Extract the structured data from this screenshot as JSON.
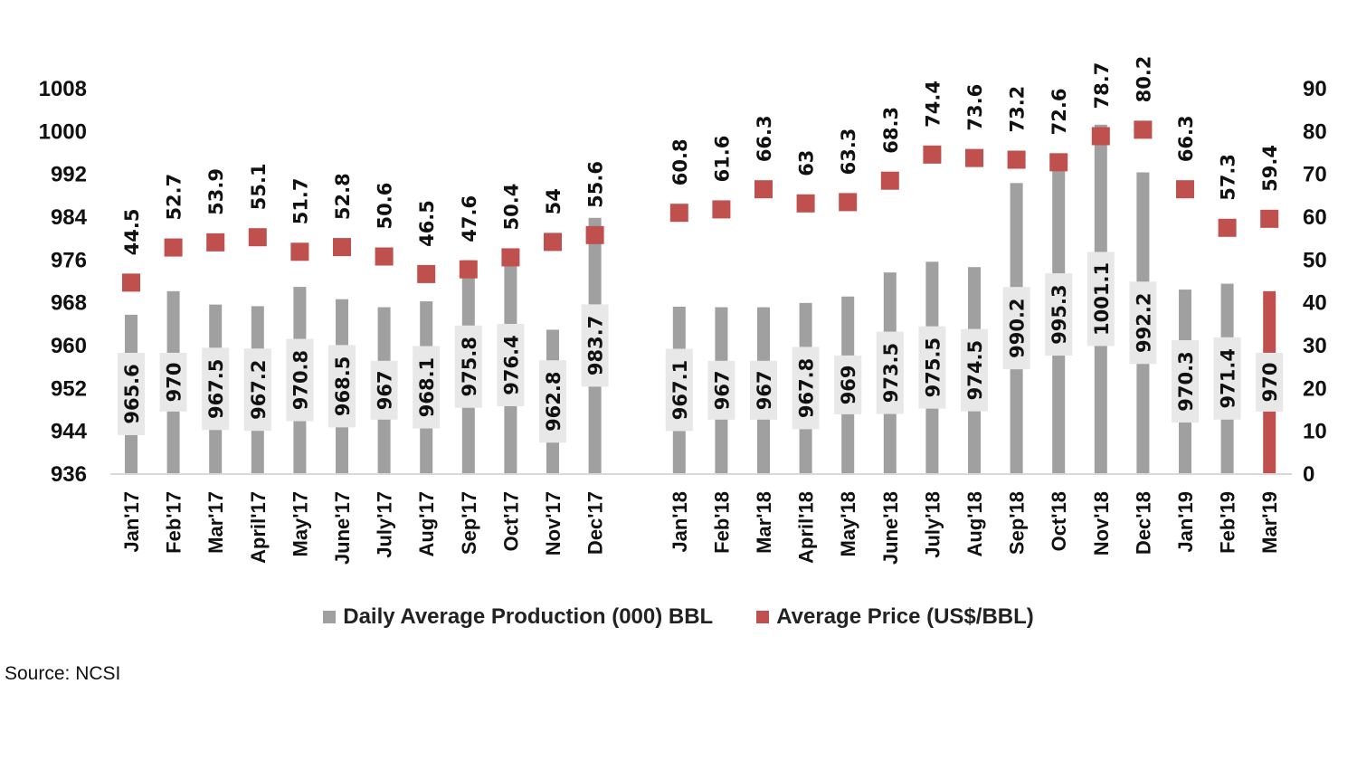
{
  "chart_data": {
    "type": "bar",
    "categories": [
      "Jan'17",
      "Feb'17",
      "Mar'17",
      "April'17",
      "May'17",
      "June'17",
      "July'17",
      "Aug'17",
      "Sep'17",
      "Oct'17",
      "Nov'17",
      "Dec'17",
      "",
      "Jan'18",
      "Feb'18",
      "Mar'18",
      "April'18",
      "May'18",
      "June'18",
      "July'18",
      "Aug'18",
      "Sep'18",
      "Oct'18",
      "Nov'18",
      "Dec'18",
      "Jan'19",
      "Feb'19",
      "Mar'19"
    ],
    "series": [
      {
        "name": "Daily Average Production (000) BBL",
        "type": "bar",
        "axis": "left",
        "color": "#a0a0a0",
        "values": [
          965.6,
          970,
          967.5,
          967.2,
          970.8,
          968.5,
          967,
          968.1,
          975.8,
          976.4,
          962.8,
          983.7,
          null,
          967.1,
          967,
          967,
          967.8,
          969,
          973.5,
          975.5,
          974.5,
          990.2,
          995.3,
          1001.1,
          992.2,
          970.3,
          971.4,
          970
        ]
      },
      {
        "name": "Average Price (US$/BBL)",
        "type": "marker",
        "axis": "right",
        "color": "#c0504d",
        "values": [
          44.5,
          52.7,
          53.9,
          55.1,
          51.7,
          52.8,
          50.6,
          46.5,
          47.6,
          50.4,
          54,
          55.6,
          null,
          60.8,
          61.6,
          66.3,
          63,
          63.3,
          68.3,
          74.4,
          73.6,
          73.2,
          72.6,
          78.7,
          80.2,
          66.3,
          57.3,
          59.4
        ]
      }
    ],
    "highlighted_bar": {
      "category": "Mar'19",
      "color": "#c0504d"
    },
    "y_left": {
      "range": [
        936,
        1008
      ],
      "ticks": [
        "936",
        "944",
        "952",
        "960",
        "968",
        "976",
        "984",
        "992",
        "1000",
        "1008"
      ]
    },
    "y_right": {
      "range": [
        0,
        90
      ],
      "ticks": [
        "0",
        "10",
        "20",
        "30",
        "40",
        "50",
        "60",
        "70",
        "80",
        "90"
      ]
    },
    "data_label_box_color": "#e8e8e8",
    "grid": false,
    "legend_position": "bottom"
  },
  "source": "Source: NCSI"
}
